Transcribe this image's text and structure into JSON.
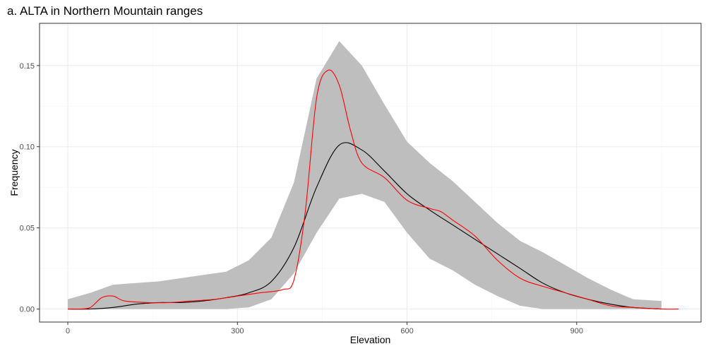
{
  "chart_data": {
    "type": "line",
    "title": "a. ALTA in Northern Mountain ranges",
    "xlabel": "Elevation",
    "ylabel": "Frequency",
    "xlim": [
      -50,
      1120
    ],
    "ylim": [
      -0.008,
      0.176
    ],
    "x_ticks": [
      0,
      300,
      600,
      900
    ],
    "y_ticks": [
      0.0,
      0.05,
      0.1,
      0.15
    ],
    "x_tick_labels": [
      "0",
      "300",
      "600",
      "900"
    ],
    "y_tick_labels": [
      "0.00",
      "0.05",
      "0.10",
      "0.15"
    ],
    "grid": true,
    "legend": "none",
    "colors": {
      "ribbon": "#bebebe",
      "mean_line": "#000000",
      "observed_line": "#ff0000",
      "grid_major": "#ebebeb",
      "grid_minor": "#f5f5f5",
      "panel_border": "#333333"
    },
    "series": [
      {
        "kind": "ribbon",
        "x": [
          0,
          40,
          80,
          120,
          160,
          200,
          240,
          280,
          320,
          360,
          400,
          440,
          480,
          520,
          560,
          600,
          640,
          680,
          720,
          760,
          800,
          840,
          880,
          920,
          960,
          1000,
          1050
        ],
        "lower": [
          0.0,
          0.0,
          0.0,
          0.0,
          0.0,
          0.0,
          0.0,
          0.0,
          0.001,
          0.006,
          0.022,
          0.047,
          0.068,
          0.071,
          0.066,
          0.047,
          0.031,
          0.024,
          0.015,
          0.008,
          0.002,
          0.0,
          0.0,
          0.0,
          0.0,
          0.0,
          0.0
        ],
        "upper": [
          0.006,
          0.01,
          0.015,
          0.016,
          0.017,
          0.019,
          0.021,
          0.023,
          0.03,
          0.044,
          0.078,
          0.142,
          0.165,
          0.15,
          0.126,
          0.103,
          0.09,
          0.079,
          0.066,
          0.053,
          0.042,
          0.035,
          0.027,
          0.019,
          0.012,
          0.006,
          0.005
        ]
      },
      {
        "kind": "line",
        "color": "#000000",
        "x": [
          0,
          40,
          80,
          120,
          160,
          200,
          240,
          280,
          320,
          360,
          400,
          440,
          480,
          520,
          560,
          600,
          640,
          680,
          720,
          760,
          800,
          840,
          880,
          920,
          960,
          1000,
          1050
        ],
        "values": [
          0.0,
          0.0,
          0.001,
          0.003,
          0.004,
          0.004,
          0.005,
          0.007,
          0.01,
          0.017,
          0.038,
          0.075,
          0.101,
          0.098,
          0.085,
          0.071,
          0.061,
          0.052,
          0.043,
          0.034,
          0.025,
          0.016,
          0.01,
          0.006,
          0.003,
          0.001,
          0.0
        ]
      },
      {
        "kind": "line",
        "color": "#ff0000",
        "x": [
          0,
          20,
          40,
          60,
          80,
          100,
          140,
          180,
          220,
          260,
          300,
          340,
          380,
          400,
          420,
          440,
          460,
          480,
          500,
          520,
          560,
          600,
          640,
          660,
          680,
          720,
          760,
          800,
          840,
          880,
          920,
          960,
          1000,
          1050,
          1080
        ],
        "values": [
          0.0,
          0.0,
          0.001,
          0.007,
          0.008,
          0.005,
          0.004,
          0.004,
          0.005,
          0.006,
          0.008,
          0.01,
          0.012,
          0.018,
          0.06,
          0.13,
          0.147,
          0.138,
          0.11,
          0.09,
          0.081,
          0.067,
          0.062,
          0.06,
          0.055,
          0.045,
          0.03,
          0.019,
          0.014,
          0.01,
          0.006,
          0.002,
          0.001,
          0.0,
          0.0
        ]
      }
    ]
  }
}
